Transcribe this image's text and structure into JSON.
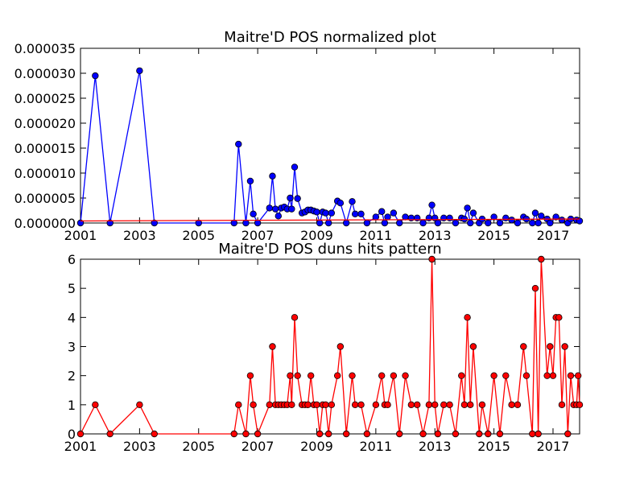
{
  "figure": {
    "background": "#ffffff"
  },
  "chart_data": [
    {
      "type": "line",
      "title": "Maitre'D POS normalized plot",
      "xlabel": "",
      "ylabel": "",
      "xlim": [
        2001.0,
        2017.9
      ],
      "ylim": [
        0,
        3.5e-05
      ],
      "xticks": [
        2001,
        2003,
        2005,
        2007,
        2009,
        2011,
        2013,
        2015,
        2017
      ],
      "xtick_labels": [
        "2001",
        "2003",
        "2005",
        "2007",
        "2009",
        "2011",
        "2013",
        "2015",
        "2017"
      ],
      "yticks": [
        0,
        5e-06,
        1e-05,
        1.5e-05,
        2e-05,
        2.5e-05,
        3e-05,
        3.5e-05
      ],
      "ytick_labels": [
        "0.000000",
        "0.000005",
        "0.000010",
        "0.000015",
        "0.000020",
        "0.000025",
        "0.000030",
        "0.000035"
      ],
      "grid": false,
      "series": [
        {
          "color": "#0000ff",
          "marker": "circle",
          "points": [
            [
              2001.0,
              0
            ],
            [
              2001.5,
              2.95e-05
            ],
            [
              2002.0,
              0
            ],
            [
              2003.0,
              3.05e-05
            ],
            [
              2003.5,
              0
            ],
            [
              2005.0,
              0
            ],
            [
              2006.2,
              0
            ],
            [
              2006.35,
              1.58e-05
            ],
            [
              2006.6,
              0
            ],
            [
              2006.75,
              8.4e-06
            ],
            [
              2006.85,
              1.8e-06
            ],
            [
              2007.0,
              0
            ],
            [
              2007.4,
              3e-06
            ],
            [
              2007.5,
              9.4e-06
            ],
            [
              2007.6,
              2.8e-06
            ],
            [
              2007.7,
              1.4e-06
            ],
            [
              2007.8,
              3e-06
            ],
            [
              2007.9,
              3.2e-06
            ],
            [
              2008.0,
              2.8e-06
            ],
            [
              2008.1,
              5e-06
            ],
            [
              2008.15,
              2.8e-06
            ],
            [
              2008.25,
              1.12e-05
            ],
            [
              2008.35,
              4.9e-06
            ],
            [
              2008.5,
              2e-06
            ],
            [
              2008.6,
              2.2e-06
            ],
            [
              2008.7,
              2.6e-06
            ],
            [
              2008.8,
              2.6e-06
            ],
            [
              2008.9,
              2.4e-06
            ],
            [
              2009.0,
              2.2e-06
            ],
            [
              2009.1,
              0
            ],
            [
              2009.2,
              2.2e-06
            ],
            [
              2009.3,
              2e-06
            ],
            [
              2009.4,
              0
            ],
            [
              2009.5,
              2e-06
            ],
            [
              2009.7,
              4.4e-06
            ],
            [
              2009.8,
              4e-06
            ],
            [
              2010.0,
              0
            ],
            [
              2010.2,
              4.3e-06
            ],
            [
              2010.3,
              1.8e-06
            ],
            [
              2010.5,
              1.8e-06
            ],
            [
              2010.7,
              0
            ],
            [
              2011.0,
              1.2e-06
            ],
            [
              2011.2,
              2.3e-06
            ],
            [
              2011.3,
              0
            ],
            [
              2011.4,
              1.2e-06
            ],
            [
              2011.6,
              2e-06
            ],
            [
              2011.8,
              0
            ],
            [
              2012.0,
              1.2e-06
            ],
            [
              2012.2,
              1e-06
            ],
            [
              2012.4,
              1e-06
            ],
            [
              2012.6,
              0
            ],
            [
              2012.8,
              1e-06
            ],
            [
              2012.9,
              3.6e-06
            ],
            [
              2013.0,
              1e-06
            ],
            [
              2013.1,
              0
            ],
            [
              2013.3,
              1e-06
            ],
            [
              2013.5,
              1e-06
            ],
            [
              2013.7,
              0
            ],
            [
              2013.9,
              1e-06
            ],
            [
              2014.0,
              8e-07
            ],
            [
              2014.1,
              3e-06
            ],
            [
              2014.2,
              0
            ],
            [
              2014.3,
              2e-06
            ],
            [
              2014.5,
              0
            ],
            [
              2014.6,
              8e-07
            ],
            [
              2014.8,
              0
            ],
            [
              2015.0,
              1.2e-06
            ],
            [
              2015.2,
              0
            ],
            [
              2015.4,
              1e-06
            ],
            [
              2015.6,
              6e-07
            ],
            [
              2015.8,
              0
            ],
            [
              2016.0,
              1.2e-06
            ],
            [
              2016.1,
              8e-07
            ],
            [
              2016.3,
              0
            ],
            [
              2016.4,
              2e-06
            ],
            [
              2016.5,
              0
            ],
            [
              2016.6,
              1.4e-06
            ],
            [
              2016.8,
              8e-07
            ],
            [
              2016.9,
              0
            ],
            [
              2017.1,
              1.2e-06
            ],
            [
              2017.3,
              6e-07
            ],
            [
              2017.5,
              0
            ],
            [
              2017.6,
              8e-07
            ],
            [
              2017.8,
              6e-07
            ],
            [
              2017.9,
              4e-07
            ]
          ]
        },
        {
          "color": "#ff0000",
          "marker": "none",
          "points": [
            [
              2001.0,
              4e-07
            ],
            [
              2017.9,
              8e-07
            ]
          ]
        }
      ]
    },
    {
      "type": "line",
      "title": "Maitre'D POS duns hits pattern",
      "xlabel": "",
      "ylabel": "",
      "xlim": [
        2001.0,
        2017.9
      ],
      "ylim": [
        0,
        6
      ],
      "xticks": [
        2001,
        2003,
        2005,
        2007,
        2009,
        2011,
        2013,
        2015,
        2017
      ],
      "xtick_labels": [
        "2001",
        "2003",
        "2005",
        "2007",
        "2009",
        "2011",
        "2013",
        "2015",
        "2017"
      ],
      "yticks": [
        0,
        1,
        2,
        3,
        4,
        5,
        6
      ],
      "ytick_labels": [
        "0",
        "1",
        "2",
        "3",
        "4",
        "5",
        "6"
      ],
      "grid": false,
      "series": [
        {
          "color": "#ff0000",
          "marker": "circle",
          "points": [
            [
              2001.0,
              0
            ],
            [
              2001.5,
              1
            ],
            [
              2002.0,
              0
            ],
            [
              2003.0,
              1
            ],
            [
              2003.5,
              0
            ],
            [
              2006.2,
              0
            ],
            [
              2006.35,
              1
            ],
            [
              2006.6,
              0
            ],
            [
              2006.75,
              2
            ],
            [
              2006.85,
              1
            ],
            [
              2007.0,
              0
            ],
            [
              2007.4,
              1
            ],
            [
              2007.5,
              3
            ],
            [
              2007.6,
              1
            ],
            [
              2007.7,
              1
            ],
            [
              2007.8,
              1
            ],
            [
              2007.9,
              1
            ],
            [
              2008.0,
              1
            ],
            [
              2008.1,
              2
            ],
            [
              2008.15,
              1
            ],
            [
              2008.25,
              4
            ],
            [
              2008.35,
              2
            ],
            [
              2008.5,
              1
            ],
            [
              2008.6,
              1
            ],
            [
              2008.7,
              1
            ],
            [
              2008.8,
              2
            ],
            [
              2008.9,
              1
            ],
            [
              2009.0,
              1
            ],
            [
              2009.1,
              0
            ],
            [
              2009.2,
              1
            ],
            [
              2009.3,
              1
            ],
            [
              2009.4,
              0
            ],
            [
              2009.5,
              1
            ],
            [
              2009.7,
              2
            ],
            [
              2009.8,
              3
            ],
            [
              2010.0,
              0
            ],
            [
              2010.2,
              2
            ],
            [
              2010.3,
              1
            ],
            [
              2010.5,
              1
            ],
            [
              2010.7,
              0
            ],
            [
              2011.0,
              1
            ],
            [
              2011.2,
              2
            ],
            [
              2011.3,
              1
            ],
            [
              2011.4,
              1
            ],
            [
              2011.6,
              2
            ],
            [
              2011.8,
              0
            ],
            [
              2012.0,
              2
            ],
            [
              2012.2,
              1
            ],
            [
              2012.4,
              1
            ],
            [
              2012.6,
              0
            ],
            [
              2012.8,
              1
            ],
            [
              2012.9,
              6
            ],
            [
              2013.0,
              1
            ],
            [
              2013.1,
              0
            ],
            [
              2013.3,
              1
            ],
            [
              2013.5,
              1
            ],
            [
              2013.7,
              0
            ],
            [
              2013.9,
              2
            ],
            [
              2014.0,
              1
            ],
            [
              2014.1,
              4
            ],
            [
              2014.2,
              1
            ],
            [
              2014.3,
              3
            ],
            [
              2014.5,
              0
            ],
            [
              2014.6,
              1
            ],
            [
              2014.8,
              0
            ],
            [
              2015.0,
              2
            ],
            [
              2015.2,
              0
            ],
            [
              2015.4,
              2
            ],
            [
              2015.6,
              1
            ],
            [
              2015.8,
              1
            ],
            [
              2016.0,
              3
            ],
            [
              2016.1,
              2
            ],
            [
              2016.3,
              0
            ],
            [
              2016.4,
              5
            ],
            [
              2016.5,
              0
            ],
            [
              2016.6,
              6
            ],
            [
              2016.8,
              2
            ],
            [
              2016.9,
              3
            ],
            [
              2017.0,
              2
            ],
            [
              2017.1,
              4
            ],
            [
              2017.2,
              4
            ],
            [
              2017.3,
              1
            ],
            [
              2017.4,
              3
            ],
            [
              2017.5,
              0
            ],
            [
              2017.6,
              2
            ],
            [
              2017.7,
              1
            ],
            [
              2017.8,
              1
            ],
            [
              2017.85,
              2
            ],
            [
              2017.9,
              1
            ]
          ]
        }
      ]
    }
  ]
}
